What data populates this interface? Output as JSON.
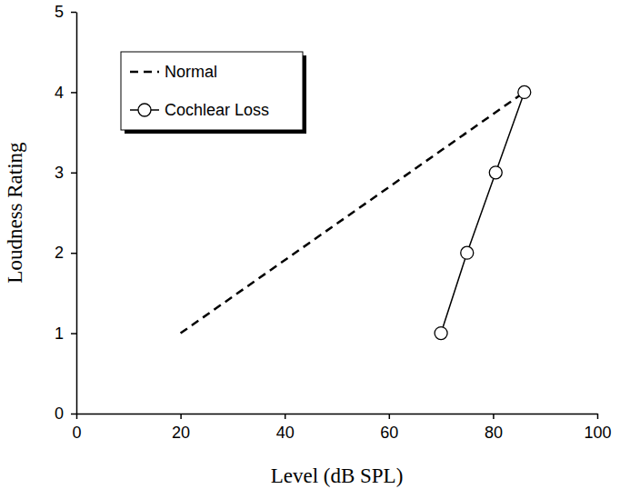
{
  "chart_data": {
    "type": "line",
    "xlabel": "Level (dB SPL)",
    "ylabel": "Loudness Rating",
    "xlim": [
      0,
      100
    ],
    "ylim": [
      0,
      5
    ],
    "xticks": [
      0,
      20,
      40,
      60,
      80,
      100
    ],
    "yticks": [
      0,
      1,
      2,
      3,
      4,
      5
    ],
    "legend": "upper left",
    "series": [
      {
        "name": "Normal",
        "color": "#000000",
        "line_style": "dashed",
        "marker": "none",
        "x": [
          20,
          86
        ],
        "values": [
          1,
          4
        ]
      },
      {
        "name": "Cochlear Loss",
        "color": "#000000",
        "line_style": "solid",
        "marker": "circle",
        "x": [
          70,
          75,
          80.5,
          86
        ],
        "values": [
          1,
          2,
          3,
          4
        ]
      }
    ]
  }
}
